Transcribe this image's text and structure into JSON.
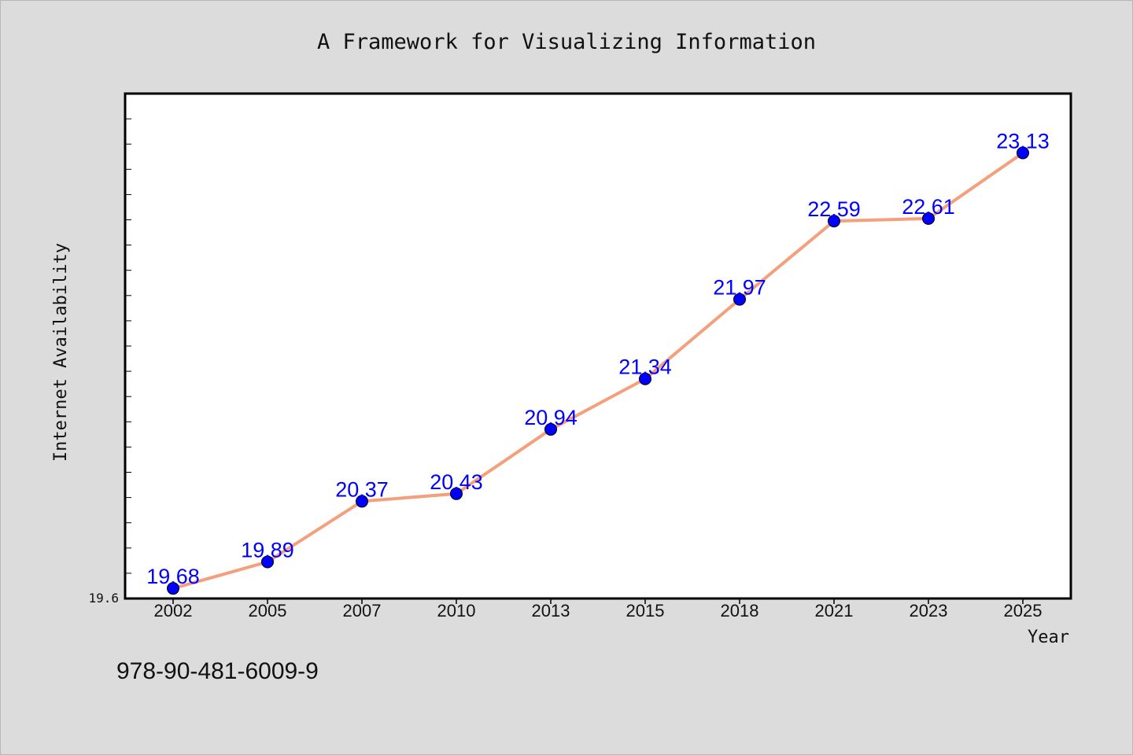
{
  "chart_data": {
    "type": "line",
    "title": "A Framework for Visualizing Information",
    "xlabel": "Year",
    "ylabel": "Internet Availability",
    "categories": [
      "2002",
      "2005",
      "2007",
      "2010",
      "2013",
      "2015",
      "2018",
      "2021",
      "2023",
      "2025"
    ],
    "series": [
      {
        "values": [
          19.68,
          19.89,
          20.37,
          20.43,
          20.94,
          21.34,
          21.97,
          22.59,
          22.61,
          23.13
        ]
      }
    ],
    "ylim": [
      19.6,
      23.6
    ],
    "yticks_labeled": [
      "19.6"
    ],
    "grid": false,
    "legend": "none",
    "line_color": "#f4a07c",
    "marker_color": "#0000ff",
    "label_color": "#0000ff"
  },
  "footer": {
    "isbn": "978-90-481-6009-9"
  }
}
